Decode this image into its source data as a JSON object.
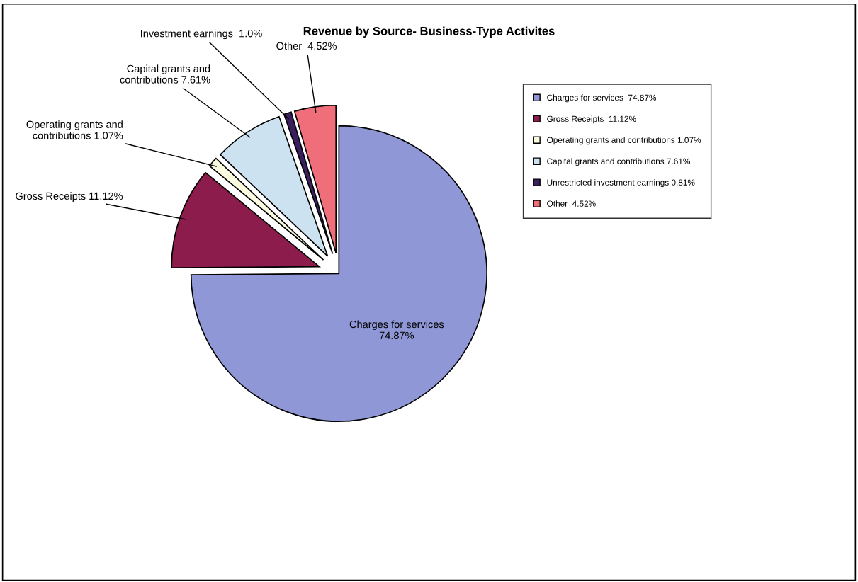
{
  "chart_data": {
    "type": "pie",
    "title": "Revenue by Source- Business-Type Activites",
    "categories": [
      "Charges for services  74.87%",
      "Gross Receipts  11.12%",
      "Operating grants and contributions 1.07%",
      "Capital grants and contributions 7.61%",
      "Unrestricted investment earnings 0.81%",
      "Other  4.52%"
    ],
    "values": [
      74.87,
      11.12,
      1.07,
      7.61,
      0.81,
      4.52
    ],
    "colors": [
      "#8f97d6",
      "#8b1c4c",
      "#fbfbe0",
      "#cde2f0",
      "#3b1e5e",
      "#f06e7a"
    ],
    "value_labels": [
      "Charges for services\n74.87%",
      "Gross Receipts 11.12%",
      "Operating grants and\ncontributions 1.07%",
      "Capital grants and\ncontributions 7.61%",
      "Investment earnings  1.0%",
      "Other  4.52%"
    ],
    "legend": "right"
  }
}
